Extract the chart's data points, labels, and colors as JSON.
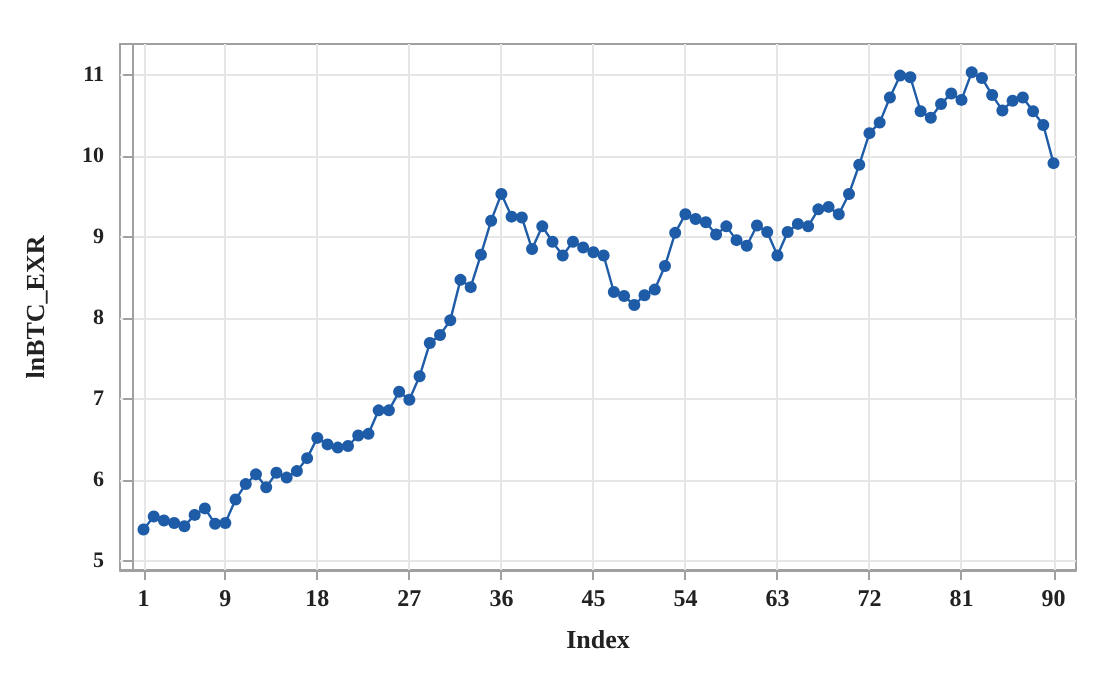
{
  "chart_data": {
    "type": "line",
    "xlabel": "Index",
    "ylabel": "lnBTC_EXR",
    "x": [
      1,
      2,
      3,
      4,
      5,
      6,
      7,
      8,
      9,
      10,
      11,
      12,
      13,
      14,
      15,
      16,
      17,
      18,
      19,
      20,
      21,
      22,
      23,
      24,
      25,
      26,
      27,
      28,
      29,
      30,
      31,
      32,
      33,
      34,
      35,
      36,
      37,
      38,
      39,
      40,
      41,
      42,
      43,
      44,
      45,
      46,
      47,
      48,
      49,
      50,
      51,
      52,
      53,
      54,
      55,
      56,
      57,
      58,
      59,
      60,
      61,
      62,
      63,
      64,
      65,
      66,
      67,
      68,
      69,
      70,
      71,
      72,
      73,
      74,
      75,
      76,
      77,
      78,
      79,
      80,
      81,
      82,
      83,
      84,
      85,
      86,
      87,
      88,
      89,
      90
    ],
    "series": [
      {
        "color": "#1f5ca8",
        "values": [
          5.39,
          5.55,
          5.5,
          5.47,
          5.43,
          5.57,
          5.65,
          5.46,
          5.47,
          5.76,
          5.95,
          6.07,
          5.91,
          6.09,
          6.03,
          6.11,
          6.27,
          6.52,
          6.44,
          6.4,
          6.42,
          6.55,
          6.57,
          6.86,
          6.86,
          7.09,
          6.99,
          7.28,
          7.69,
          7.79,
          7.97,
          8.47,
          8.38,
          8.78,
          9.2,
          9.53,
          9.25,
          9.24,
          8.85,
          9.13,
          8.94,
          8.77,
          8.94,
          8.87,
          8.81,
          8.77,
          8.32,
          8.27,
          8.16,
          8.28,
          8.35,
          8.64,
          9.05,
          9.28,
          9.22,
          9.18,
          9.03,
          9.13,
          8.96,
          8.89,
          9.14,
          9.06,
          8.77,
          9.06,
          9.16,
          9.13,
          9.34,
          9.37,
          9.28,
          9.53,
          9.89,
          10.28,
          10.41,
          10.72,
          10.99,
          10.97,
          10.55,
          10.47,
          10.64,
          10.77,
          10.69,
          11.03,
          10.96,
          10.75,
          10.56,
          10.68,
          10.72,
          10.55,
          10.38,
          9.91
        ]
      }
    ],
    "xlim": [
      -1.3,
      92.2
    ],
    "xticks": [
      1,
      9,
      18,
      27,
      36,
      45,
      54,
      63,
      72,
      81,
      90
    ],
    "ylim": [
      4.89,
      11.38
    ],
    "yticks": [
      5,
      6,
      7,
      8,
      9,
      10,
      11
    ],
    "grid": true,
    "marker": "circle",
    "line_style": "solid"
  }
}
